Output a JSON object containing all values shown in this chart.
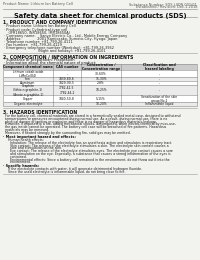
{
  "bg_color": "#f2f2ee",
  "header_left": "Product Name: Lithium Ion Battery Cell",
  "header_right_line1": "Substance Number: SDS-LIION-001/01",
  "header_right_line2": "Established / Revision: Dec.1.2018",
  "title": "Safety data sheet for chemical products (SDS)",
  "section1_title": "1. PRODUCT AND COMPANY IDENTIFICATION",
  "section1_items": [
    "· Product name: Lithium Ion Battery Cell",
    "· Product code: Cylindrical-type cell",
    "    (IFR18650, INR18650, IMR18650A)",
    "· Company name:    Sanyo Electric Co., Ltd., Mobile Energy Company",
    "· Address:              2001 Kamiosako, Sumoto-City, Hyogo, Japan",
    "· Telephone number: +81-799-26-4111",
    "· Fax number:  +81-799-26-4129",
    "· Emergency telephone number (Weekday): +81-799-26-3962",
    "                              (Night and holiday): +81-799-26-4101"
  ],
  "section2_title": "2. COMPOSITION / INFORMATION ON INGREDIENTS",
  "section2_sub": "· Substance or preparation: Preparation",
  "section2_sub2": "· Information about the chemical nature of product:",
  "table_col_headers": [
    "Component chemical name",
    "CAS number",
    "Concentration /\nConcentration range",
    "Classification and\nhazard labeling"
  ],
  "table_rows": [
    [
      "Lithium cobalt oxide\n(LiMnCo)O4)",
      "-",
      "30-60%",
      "-"
    ],
    [
      "Iron",
      "7439-89-6",
      "15-30%",
      "-"
    ],
    [
      "Aluminum",
      "7429-90-5",
      "2-8%",
      "-"
    ],
    [
      "Graphite\n(lithio-n graphite-1)\n(Anoto-n graphite-1)",
      "7782-42-5\n7782-44-2",
      "10-25%",
      "-"
    ],
    [
      "Copper",
      "7440-50-8",
      "5-15%",
      "Sensitization of the skin\ngroup No.2"
    ],
    [
      "Organic electrolyte",
      "-",
      "10-20%",
      "Inflammable liquid"
    ]
  ],
  "section3_title": "3. HAZARDS IDENTIFICATION",
  "section3_lines": [
    "  For the battery cell, chemical materials are stored in a hermetically sealed metal case, designed to withstand",
    "  temperatures or pressures encountered during normal use. As a result, during normal use, there is no",
    "  physical danger of ignition or explosion and there is no danger of hazardous materials leakage.",
    "  However, if exposed to a fire, added mechanical shocks, decomposed, when electro-chemical by miss-use,",
    "  the gas inside cannot be operated. The battery cell case will be breached of fire patterns. Hazardous",
    "  materials may be removed.",
    "  Moreover, if heated strongly by the surrounding fire, solid gas may be emitted."
  ],
  "bullet_human": "· Most important hazard and effects:",
  "human_lines": [
    "    Human health effects:",
    "      Inhalation: The release of the electrolyte has an anesthesia action and stimulates is respiratory tract.",
    "      Skin contact: The release of the electrolyte stimulates a skin. The electrolyte skin contact causes a",
    "      sore and stimulation on the skin.",
    "      Eye contact: The release of the electrolyte stimulates eyes. The electrolyte eye contact causes a sore",
    "      and stimulation on the eye. Especially, a substance that causes a strong inflammation of the eyes is",
    "      contained.",
    "      Environmental effects: Since a battery cell remained in the environment, do not throw out it into the",
    "      environment."
  ],
  "bullet_specific": "· Specific hazards:",
  "specific_lines": [
    "    If the electrolyte contacts with water, it will generate detrimental hydrogen fluoride.",
    "    Since the used electrolyte is inflammable liquid, do not bring close to fire."
  ]
}
